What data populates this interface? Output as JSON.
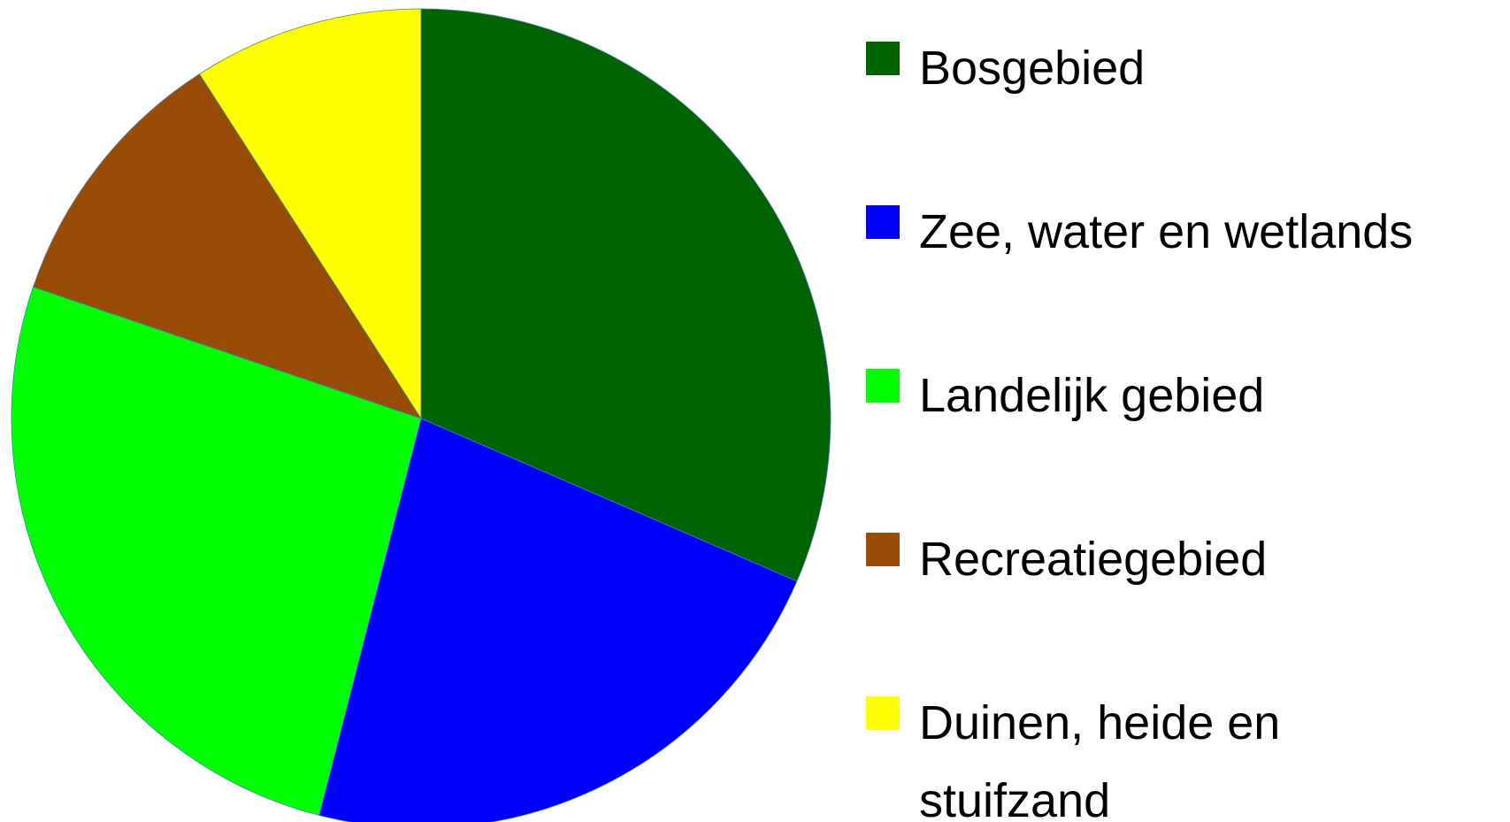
{
  "chart_data": {
    "type": "pie",
    "categories": [
      "Bosgebied",
      "Zee, water en wetlands",
      "Landelijk gebied",
      "Recreatiegebied",
      "Duinen, heide en stuifzand"
    ],
    "values": [
      31.5,
      22.5,
      26.2,
      10.7,
      9.1
    ],
    "colors": [
      "#006400",
      "#0000ff",
      "#00ff00",
      "#994c06",
      "#ffff00"
    ],
    "legend": "right"
  }
}
